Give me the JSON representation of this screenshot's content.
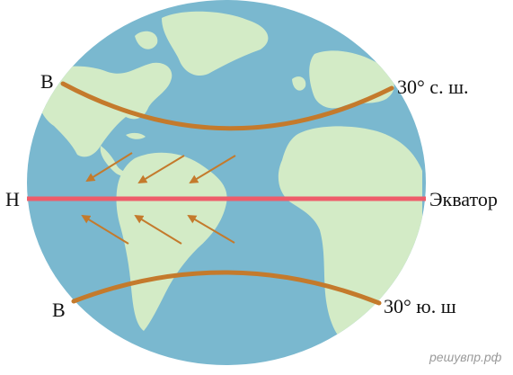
{
  "labels": {
    "north_latitude": "30° с. ш.",
    "south_latitude": "30° ю. ш",
    "equator": "Экватор",
    "high_pressure_north": "В",
    "low_pressure_equator": "Н",
    "high_pressure_south": "В"
  },
  "watermark": "решувпр.рф",
  "colors": {
    "ocean": "#7ab8cf",
    "land": "#d3ebc6",
    "equator_line": "#ee5c6a",
    "latitude_line": "#c47a2c",
    "arrows": "#c47a2c"
  },
  "trade_winds": {
    "northern_hemisphere": 3,
    "southern_hemisphere": 3
  }
}
